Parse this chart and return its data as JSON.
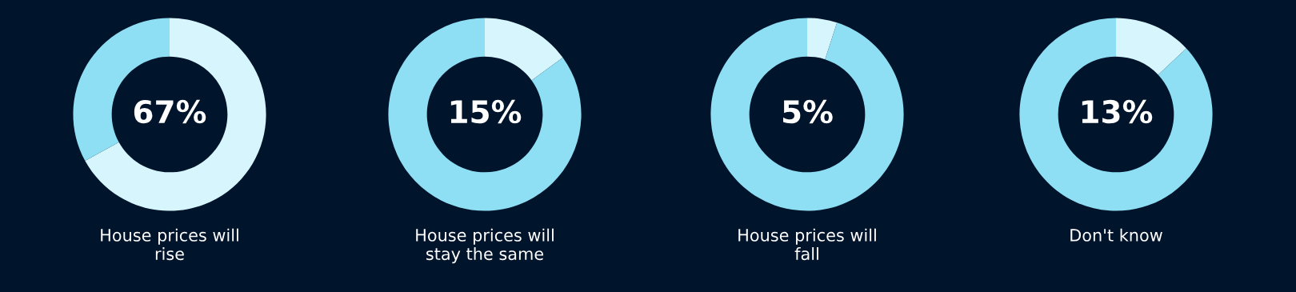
{
  "chart_data": [
    {
      "type": "donut",
      "title": "House prices will rise",
      "categories": [
        null,
        null
      ],
      "values": [
        67,
        33
      ],
      "colors": [
        "#d7f5fd",
        "#8edff3"
      ],
      "value_labels": [
        "67%",
        null
      ]
    },
    {
      "type": "donut",
      "title": "House prices will stay the same",
      "categories": [
        null,
        null
      ],
      "values": [
        15,
        85
      ],
      "colors": [
        "#d7f5fd",
        "#8edff3"
      ],
      "value_labels": [
        "15%",
        null
      ]
    },
    {
      "type": "donut",
      "title": "House prices will fall",
      "categories": [
        null,
        null
      ],
      "values": [
        5,
        95
      ],
      "colors": [
        "#d7f5fd",
        "#8edff3"
      ],
      "value_labels": [
        "5%",
        null
      ]
    },
    {
      "type": "donut",
      "title": "Don't know",
      "categories": [
        null,
        null
      ],
      "values": [
        13,
        87
      ],
      "colors": [
        "#d7f5fd",
        "#8edff3"
      ],
      "value_labels": [
        "13%",
        null
      ]
    }
  ]
}
